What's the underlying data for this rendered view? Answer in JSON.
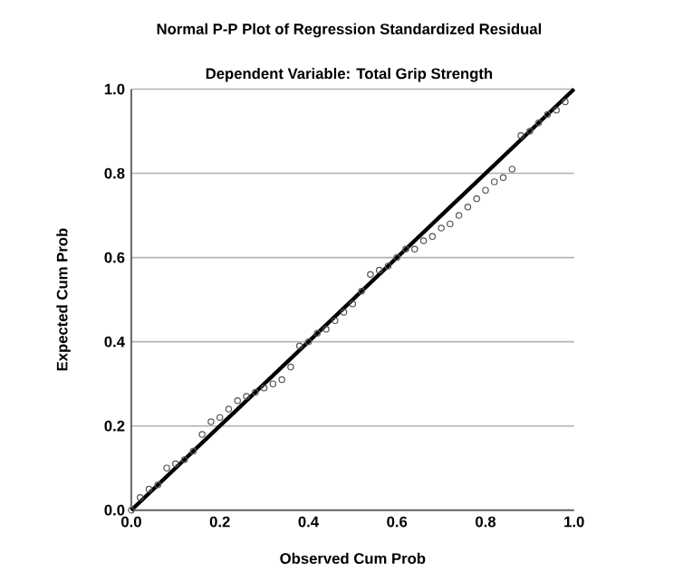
{
  "chart_data": {
    "type": "scatter",
    "title": "Normal P-P Plot of Regression Standardized Residual",
    "subtitle": "Dependent Variable: Total Grip Strength",
    "xlabel": "Observed Cum Prob",
    "ylabel": "Expected Cum Prob",
    "xlim": [
      0,
      1
    ],
    "ylim": [
      0,
      1
    ],
    "xticks": [
      {
        "value": 0,
        "label": "0.0"
      },
      {
        "value": 0.2,
        "label": "0.2"
      },
      {
        "value": 0.4,
        "label": "0.4"
      },
      {
        "value": 0.6,
        "label": "0.6"
      },
      {
        "value": 0.8,
        "label": "0.8"
      },
      {
        "value": 1,
        "label": "1.0"
      }
    ],
    "yticks": [
      {
        "value": 0,
        "label": "0.0"
      },
      {
        "value": 0.2,
        "label": "0.2"
      },
      {
        "value": 0.4,
        "label": "0.4"
      },
      {
        "value": 0.6,
        "label": "0.6"
      },
      {
        "value": 0.8,
        "label": "0.8"
      },
      {
        "value": 1,
        "label": "1.0"
      }
    ],
    "grid": "y",
    "series": [
      {
        "color": "#555555",
        "marker": "circle",
        "x": [
          0.0,
          0.02,
          0.04,
          0.06,
          0.08,
          0.1,
          0.12,
          0.14,
          0.16,
          0.18,
          0.2,
          0.22,
          0.24,
          0.26,
          0.28,
          0.3,
          0.32,
          0.34,
          0.36,
          0.38,
          0.4,
          0.42,
          0.44,
          0.46,
          0.48,
          0.5,
          0.52,
          0.54,
          0.56,
          0.58,
          0.6,
          0.62,
          0.64,
          0.66,
          0.68,
          0.7,
          0.72,
          0.74,
          0.76,
          0.78,
          0.8,
          0.82,
          0.84,
          0.86,
          0.88,
          0.9,
          0.92,
          0.94,
          0.96,
          0.98
        ],
        "values": [
          0.0,
          0.03,
          0.05,
          0.06,
          0.1,
          0.11,
          0.12,
          0.14,
          0.18,
          0.21,
          0.22,
          0.24,
          0.26,
          0.27,
          0.28,
          0.29,
          0.3,
          0.31,
          0.34,
          0.39,
          0.4,
          0.42,
          0.43,
          0.45,
          0.47,
          0.49,
          0.52,
          0.56,
          0.57,
          0.58,
          0.6,
          0.62,
          0.62,
          0.64,
          0.65,
          0.67,
          0.68,
          0.7,
          0.72,
          0.74,
          0.76,
          0.78,
          0.79,
          0.81,
          0.89,
          0.9,
          0.92,
          0.94,
          0.95,
          0.97
        ]
      },
      {
        "type": "line",
        "color": "#000000",
        "marker": "none",
        "x": [
          0,
          1
        ],
        "values": [
          0,
          1
        ]
      }
    ]
  }
}
